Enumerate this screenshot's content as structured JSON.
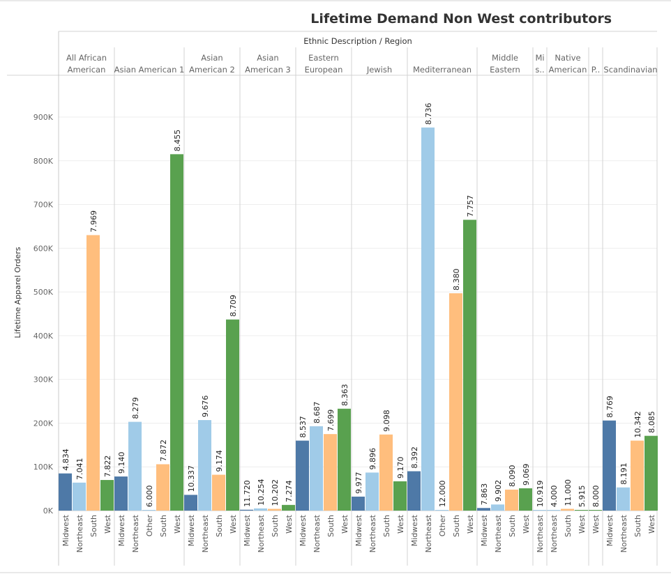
{
  "chart_data": {
    "type": "bar",
    "title": "Lifetime Demand Non West contributors",
    "column_header": "Ethnic Description / Region",
    "ylabel": "Lifetime Apparel Orders",
    "ylim": [
      0,
      1000000
    ],
    "y_ticks": [
      {
        "value": 0,
        "label": "0K"
      },
      {
        "value": 100000,
        "label": "100K"
      },
      {
        "value": 200000,
        "label": "200K"
      },
      {
        "value": 300000,
        "label": "300K"
      },
      {
        "value": 400000,
        "label": "400K"
      },
      {
        "value": 500000,
        "label": "500K"
      },
      {
        "value": 600000,
        "label": "600K"
      },
      {
        "value": 700000,
        "label": "700K"
      },
      {
        "value": 800000,
        "label": "800K"
      },
      {
        "value": 900000,
        "label": "900K"
      }
    ],
    "grid": true,
    "colors": {
      "Midwest": "#4e79a7",
      "Northeast": "#a0cbe8",
      "South": "#ffbe7d",
      "West": "#59a14f",
      "Other": "#a0cbe8"
    },
    "groups": [
      {
        "name": [
          "All African",
          "American"
        ],
        "bars": [
          {
            "region": "Midwest",
            "value": 85000,
            "label": "4.834"
          },
          {
            "region": "Northeast",
            "value": 64000,
            "label": "7.041"
          },
          {
            "region": "South",
            "value": 630000,
            "label": "7.969"
          },
          {
            "region": "West",
            "value": 70000,
            "label": "7.822"
          }
        ]
      },
      {
        "name": [
          "Asian American 1"
        ],
        "bars": [
          {
            "region": "Midwest",
            "value": 78000,
            "label": "9.140"
          },
          {
            "region": "Northeast",
            "value": 203000,
            "label": "8.279"
          },
          {
            "region": "Other",
            "value": 500,
            "label": "6.000"
          },
          {
            "region": "South",
            "value": 106000,
            "label": "7.872"
          },
          {
            "region": "West",
            "value": 815000,
            "label": "8.455"
          }
        ]
      },
      {
        "name": [
          "Asian",
          "American 2"
        ],
        "bars": [
          {
            "region": "Midwest",
            "value": 36000,
            "label": "10.337"
          },
          {
            "region": "Northeast",
            "value": 207000,
            "label": "9.676"
          },
          {
            "region": "South",
            "value": 82000,
            "label": "9.174"
          },
          {
            "region": "West",
            "value": 437000,
            "label": "8.709"
          }
        ]
      },
      {
        "name": [
          "Asian",
          "American 3"
        ],
        "bars": [
          {
            "region": "Midwest",
            "value": 2000,
            "label": "11.720"
          },
          {
            "region": "Northeast",
            "value": 5000,
            "label": "10.254"
          },
          {
            "region": "South",
            "value": 4000,
            "label": "10.202"
          },
          {
            "region": "West",
            "value": 13000,
            "label": "7.274"
          }
        ]
      },
      {
        "name": [
          "Eastern",
          "European"
        ],
        "bars": [
          {
            "region": "Midwest",
            "value": 160000,
            "label": "8.537"
          },
          {
            "region": "Northeast",
            "value": 193000,
            "label": "8.687"
          },
          {
            "region": "South",
            "value": 175000,
            "label": "7.699"
          },
          {
            "region": "West",
            "value": 233000,
            "label": "8.363"
          }
        ]
      },
      {
        "name": [
          "Jewish"
        ],
        "bars": [
          {
            "region": "Midwest",
            "value": 32000,
            "label": "9.977"
          },
          {
            "region": "Northeast",
            "value": 87000,
            "label": "9.896"
          },
          {
            "region": "South",
            "value": 174000,
            "label": "9.098"
          },
          {
            "region": "West",
            "value": 67000,
            "label": "9.170"
          }
        ]
      },
      {
        "name": [
          "Mediterranean"
        ],
        "bars": [
          {
            "region": "Midwest",
            "value": 90000,
            "label": "8.392"
          },
          {
            "region": "Northeast",
            "value": 876000,
            "label": "8.736"
          },
          {
            "region": "Other",
            "value": 500,
            "label": "12.000"
          },
          {
            "region": "South",
            "value": 497000,
            "label": "8.380"
          },
          {
            "region": "West",
            "value": 665000,
            "label": "7.757"
          }
        ]
      },
      {
        "name": [
          "Middle",
          "Eastern"
        ],
        "bars": [
          {
            "region": "Midwest",
            "value": 6000,
            "label": "7.863"
          },
          {
            "region": "Northeast",
            "value": 14000,
            "label": "9.902"
          },
          {
            "region": "South",
            "value": 48000,
            "label": "8.090"
          },
          {
            "region": "West",
            "value": 51000,
            "label": "9.069"
          }
        ]
      },
      {
        "name": [
          "Mi",
          "s.."
        ],
        "bars": [
          {
            "region": "Northeast",
            "value": 1500,
            "label": "10.919"
          }
        ]
      },
      {
        "name": [
          "Native",
          "American"
        ],
        "bars": [
          {
            "region": "Northeast",
            "value": 800,
            "label": "4.000"
          },
          {
            "region": "South",
            "value": 4000,
            "label": "11.000"
          },
          {
            "region": "West",
            "value": 1500,
            "label": "5.915"
          }
        ]
      },
      {
        "name": [
          "P.."
        ],
        "bars": [
          {
            "region": "West",
            "value": 800,
            "label": "8.000"
          }
        ]
      },
      {
        "name": [
          "Scandinavian"
        ],
        "bars": [
          {
            "region": "Midwest",
            "value": 206000,
            "label": "8.769"
          },
          {
            "region": "Northeast",
            "value": 53000,
            "label": "8.191"
          },
          {
            "region": "South",
            "value": 160000,
            "label": "10.342"
          },
          {
            "region": "West",
            "value": 171000,
            "label": "8.085"
          }
        ]
      }
    ]
  }
}
